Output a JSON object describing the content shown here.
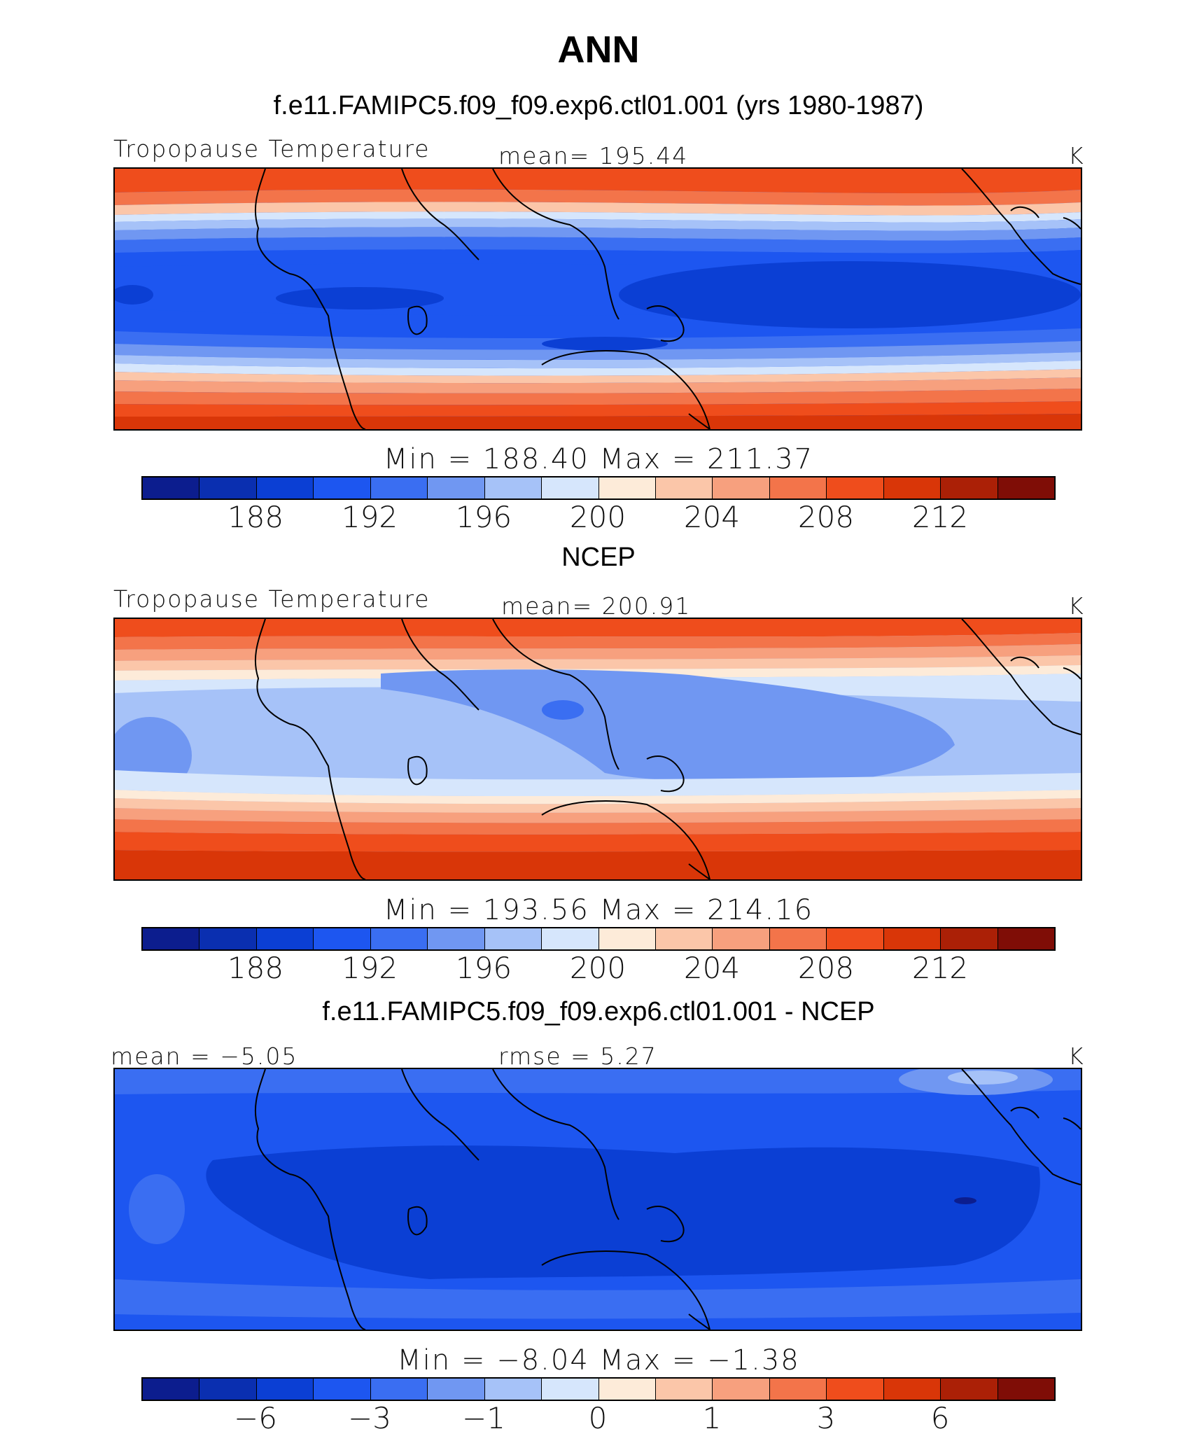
{
  "title": "ANN",
  "color_levels": [
    "#0c1d8e",
    "#0a2fb0",
    "#0b3fd4",
    "#1d56f0",
    "#3a6ef2",
    "#7097f2",
    "#a6c2f8",
    "#d6e6fc",
    "#fdebd9",
    "#fbc6a9",
    "#f7a07e",
    "#f3744a",
    "#ef4d1c",
    "#d93608",
    "#ab2006",
    "#7f0d06"
  ],
  "land_color": "#000000",
  "panels": [
    {
      "title": "f.e11.FAMIPC5.f09_f09.exp6.ctl01.001 (yrs 1980-1987)",
      "left_label": "Tropopause Temperature",
      "center_label": "mean= 195.44",
      "units": "K",
      "minmax": "Min  =  188.40  Max  =  211.37",
      "tick_labels": [
        "188",
        "192",
        "196",
        "200",
        "204",
        "208",
        "212"
      ]
    },
    {
      "title": "NCEP",
      "left_label": "Tropopause Temperature",
      "center_label": "mean= 200.91",
      "units": "K",
      "minmax": "Min  =  193.56  Max  =  214.16",
      "tick_labels": [
        "188",
        "192",
        "196",
        "200",
        "204",
        "208",
        "212"
      ]
    },
    {
      "title": "f.e11.FAMIPC5.f09_f09.exp6.ctl01.001 - NCEP",
      "left_label": "mean =   −5.05",
      "center_label": "rmse =    5.27",
      "units": "K",
      "minmax": "Min  =   −8.04  Max  =   −1.38",
      "tick_labels": [
        "−6",
        "−3",
        "−1",
        "0",
        "1",
        "3",
        "6"
      ]
    }
  ]
}
